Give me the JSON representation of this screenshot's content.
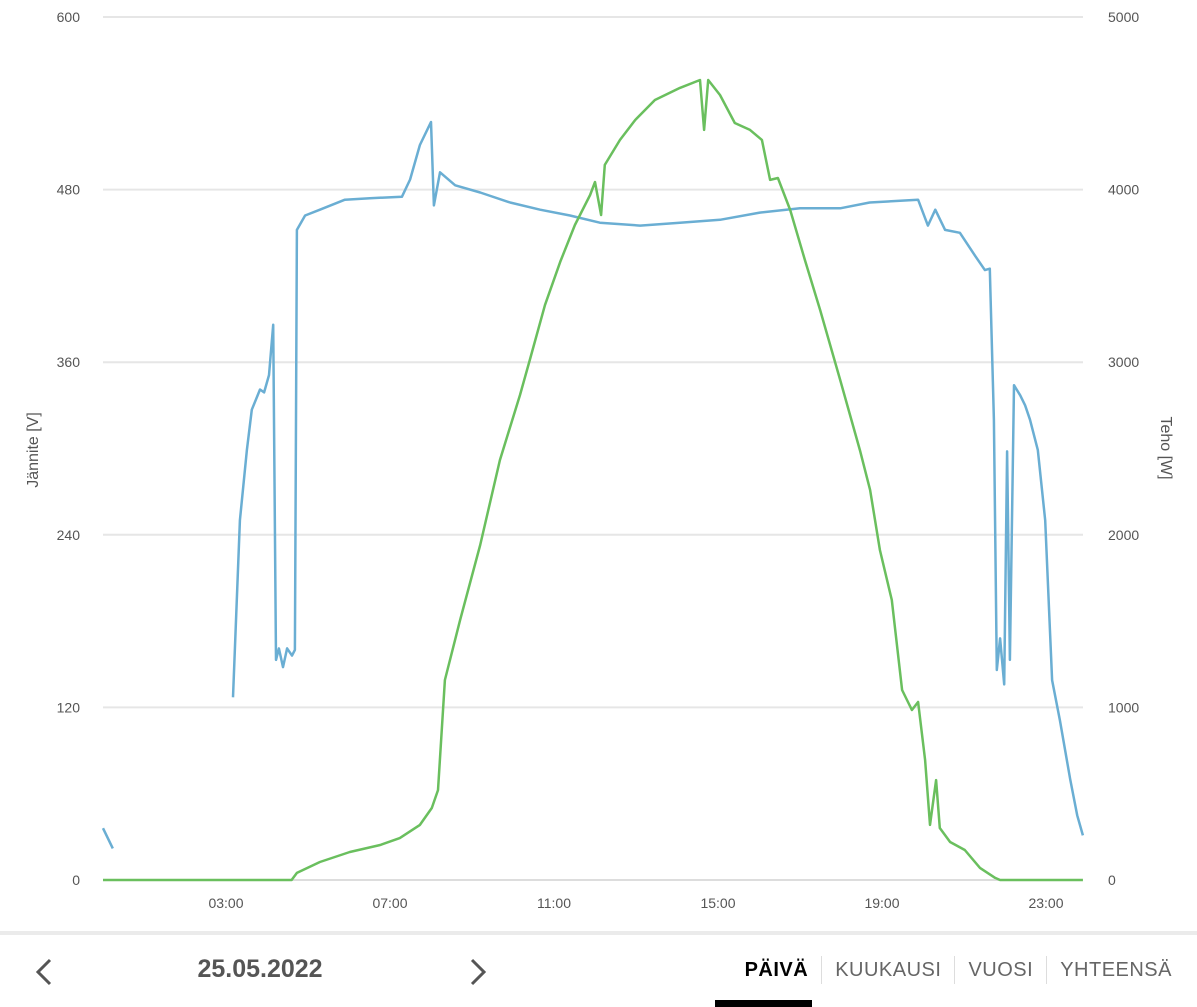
{
  "chart_data": {
    "type": "line",
    "xlabel": "",
    "x_ticks": [
      "03:00",
      "07:00",
      "11:00",
      "15:00",
      "19:00",
      "23:00"
    ],
    "x_tick_hours": [
      3,
      7,
      11,
      15,
      19,
      23
    ],
    "xlim_hours": [
      0,
      24
    ],
    "y_left": {
      "label": "Jännite [V]",
      "lim": [
        0,
        600
      ],
      "ticks": [
        "0",
        "120",
        "240",
        "360",
        "480",
        "600"
      ]
    },
    "y_right": {
      "label": "Teho [W]",
      "lim": [
        0,
        5000
      ],
      "ticks": [
        "0",
        "1000",
        "2000",
        "3000",
        "4000",
        "5000"
      ]
    },
    "grid": true,
    "series": [
      {
        "axis": "left",
        "color": "#6aaed3",
        "segments": [
          [
            [
              0,
              36
            ],
            [
              0.24,
              22
            ]
          ],
          [
            [
              3.17,
              127
            ],
            [
              3.34,
              250
            ],
            [
              3.51,
              299
            ],
            [
              3.63,
              327
            ],
            [
              3.83,
              341
            ],
            [
              3.93,
              339
            ],
            [
              4.05,
              351
            ],
            [
              4.15,
              386
            ],
            [
              4.22,
              153
            ],
            [
              4.29,
              161
            ],
            [
              4.39,
              148
            ],
            [
              4.49,
              161
            ],
            [
              4.61,
              156
            ],
            [
              4.68,
              160
            ],
            [
              4.73,
              452
            ],
            [
              4.93,
              462
            ],
            [
              5.29,
              466
            ],
            [
              5.9,
              473
            ],
            [
              6.51,
              474
            ],
            [
              7.29,
              475
            ],
            [
              7.49,
              487
            ],
            [
              7.73,
              511
            ],
            [
              8.0,
              527
            ],
            [
              8.07,
              469
            ],
            [
              8.22,
              492
            ],
            [
              8.59,
              483
            ],
            [
              9.2,
              478
            ],
            [
              9.93,
              471
            ],
            [
              10.66,
              466
            ],
            [
              11.39,
              462
            ],
            [
              12.12,
              457
            ],
            [
              13.1,
              455
            ],
            [
              14.07,
              457
            ],
            [
              15.05,
              459
            ],
            [
              16.02,
              464
            ],
            [
              17.0,
              467
            ],
            [
              17.98,
              467
            ],
            [
              18.7,
              471
            ],
            [
              19.88,
              473
            ],
            [
              20.12,
              455
            ],
            [
              20.3,
              466
            ],
            [
              20.54,
              452
            ],
            [
              20.9,
              450
            ],
            [
              21.27,
              434
            ],
            [
              21.51,
              424
            ],
            [
              21.63,
              425
            ],
            [
              21.73,
              320
            ],
            [
              21.8,
              146
            ],
            [
              21.88,
              168
            ],
            [
              21.98,
              136
            ],
            [
              22.05,
              298
            ],
            [
              22.12,
              153
            ],
            [
              22.22,
              344
            ],
            [
              22.37,
              337
            ],
            [
              22.49,
              330
            ],
            [
              22.61,
              320
            ],
            [
              22.8,
              299
            ],
            [
              22.98,
              250
            ],
            [
              23.15,
              139
            ],
            [
              23.34,
              111
            ],
            [
              23.59,
              70
            ],
            [
              23.76,
              45
            ],
            [
              23.9,
              31
            ]
          ]
        ]
      },
      {
        "axis": "right",
        "color": "#6abf5e",
        "segments": [
          [
            [
              0,
              0
            ],
            [
              4.6,
              0
            ],
            [
              4.73,
              41
            ],
            [
              5.29,
              104
            ],
            [
              6.02,
              162
            ],
            [
              6.76,
              203
            ],
            [
              7.24,
              243
            ],
            [
              7.73,
              319
            ],
            [
              8.02,
              417
            ],
            [
              8.17,
              521
            ],
            [
              8.34,
              1159
            ],
            [
              8.71,
              1506
            ],
            [
              9.2,
              1941
            ],
            [
              9.68,
              2433
            ],
            [
              10.17,
              2810
            ],
            [
              10.41,
              3013
            ],
            [
              10.78,
              3332
            ],
            [
              11.15,
              3581
            ],
            [
              11.51,
              3795
            ],
            [
              11.88,
              3969
            ],
            [
              12.0,
              4044
            ],
            [
              12.15,
              3853
            ],
            [
              12.24,
              4143
            ],
            [
              12.61,
              4288
            ],
            [
              12.98,
              4403
            ],
            [
              13.46,
              4519
            ],
            [
              14.07,
              4589
            ],
            [
              14.56,
              4635
            ],
            [
              14.66,
              4346
            ],
            [
              14.76,
              4635
            ],
            [
              15.05,
              4548
            ],
            [
              15.41,
              4386
            ],
            [
              15.78,
              4346
            ],
            [
              16.07,
              4288
            ],
            [
              16.27,
              4056
            ],
            [
              16.46,
              4067
            ],
            [
              16.76,
              3882
            ],
            [
              17.12,
              3592
            ],
            [
              17.49,
              3303
            ],
            [
              17.98,
              2897
            ],
            [
              18.46,
              2491
            ],
            [
              18.71,
              2260
            ],
            [
              18.95,
              1912
            ],
            [
              19.24,
              1622
            ],
            [
              19.49,
              1101
            ],
            [
              19.73,
              985
            ],
            [
              19.88,
              1031
            ],
            [
              20.05,
              695
            ],
            [
              20.17,
              319
            ],
            [
              20.32,
              579
            ],
            [
              20.41,
              301
            ],
            [
              20.66,
              220
            ],
            [
              21.02,
              174
            ],
            [
              21.39,
              70
            ],
            [
              21.76,
              12
            ],
            [
              21.88,
              0
            ],
            [
              23.9,
              0
            ]
          ]
        ]
      }
    ]
  },
  "nav": {
    "date": "25.05.2022",
    "prev_icon": "chevron-left-icon",
    "next_icon": "chevron-right-icon",
    "tabs": [
      {
        "label": "PÄIVÄ",
        "active": true
      },
      {
        "label": "KUUKAUSI",
        "active": false
      },
      {
        "label": "VUOSI",
        "active": false
      },
      {
        "label": "YHTEENSÄ",
        "active": false
      }
    ]
  }
}
